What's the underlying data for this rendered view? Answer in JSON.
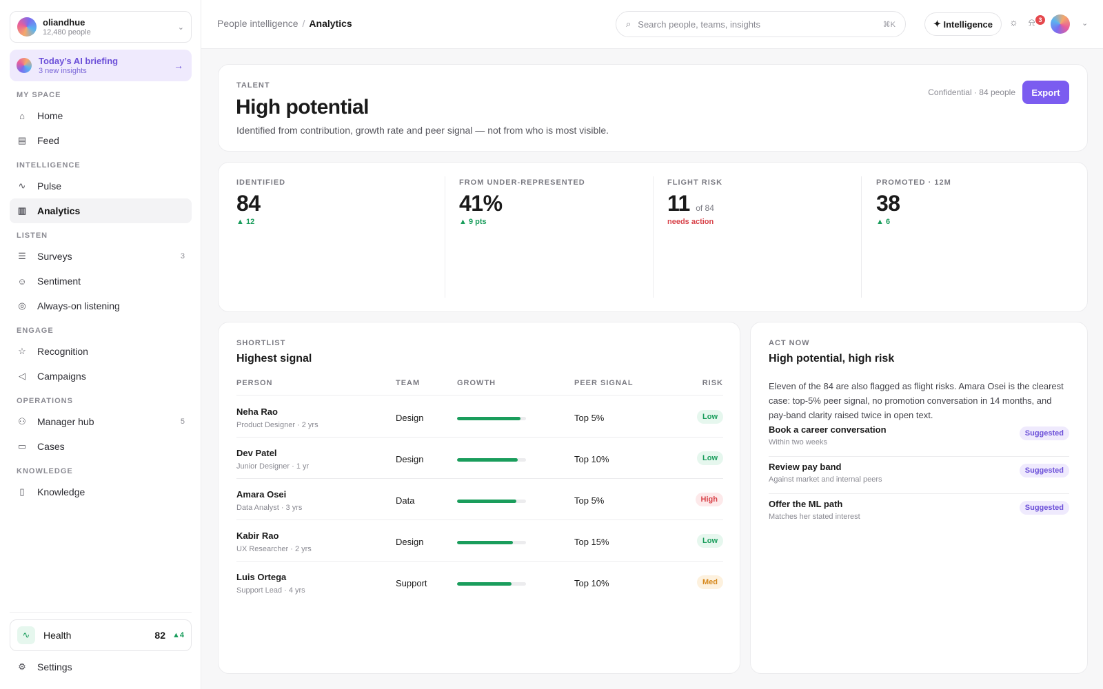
{
  "org": {
    "name": "oliandhue",
    "people": "12,480 people"
  },
  "briefing": {
    "title": "Today’s AI briefing",
    "subtitle": "3 new insights"
  },
  "sidebar": {
    "sections": {
      "my_space": "MY SPACE",
      "intelligence": "INTELLIGENCE",
      "listen": "LISTEN",
      "engage": "ENGAGE",
      "operations": "OPERATIONS",
      "knowledge": "KNOWLEDGE"
    },
    "items": {
      "home": "Home",
      "feed": "Feed",
      "pulse": "Pulse",
      "analytics": "Analytics",
      "surveys": "Surveys",
      "surveys_count": "3",
      "sentiment": "Sentiment",
      "always_on": "Always-on listening",
      "recognition": "Recognition",
      "campaigns": "Campaigns",
      "manager_hub": "Manager hub",
      "manager_hub_count": "5",
      "cases": "Cases",
      "knowledge": "Knowledge"
    },
    "active": "analytics",
    "health": {
      "label": "Health",
      "value": "82",
      "delta": "4"
    },
    "settings": "Settings"
  },
  "header": {
    "breadcrumb": {
      "parent": "People intelligence",
      "current": "Analytics"
    },
    "search": {
      "placeholder": "Search people, teams, insights",
      "shortcut": "⌘K"
    },
    "intelligence_button": "Intelligence",
    "notifications_count": "3"
  },
  "hero": {
    "eyebrow": "TALENT",
    "title": "High potential",
    "description": "Identified from contribution, growth rate and peer signal — not from who is most visible.",
    "confidential": "Confidential · 84 people",
    "export": "Export"
  },
  "stats": [
    {
      "label": "IDENTIFIED",
      "value": "84",
      "suffix": "",
      "delta": "12",
      "direction": "up"
    },
    {
      "label": "FROM UNDER-REPRESENTED",
      "value": "41%",
      "suffix": "",
      "delta": "9 pts",
      "direction": "up"
    },
    {
      "label": "FLIGHT RISK",
      "value": "11",
      "suffix": "of 84",
      "delta": "needs action",
      "direction": "warn"
    },
    {
      "label": "PROMOTED · 12M",
      "value": "38",
      "suffix": "",
      "delta": "6",
      "direction": "up"
    }
  ],
  "shortlist": {
    "eyebrow": "SHORTLIST",
    "title": "Highest signal",
    "columns": {
      "person": "PERSON",
      "team": "TEAM",
      "growth": "GROWTH",
      "peer": "PEER SIGNAL",
      "risk": "RISK"
    },
    "rows": [
      {
        "name": "Neha Rao",
        "meta": "Product Designer · 2 yrs",
        "team": "Design",
        "growth": 0.92,
        "peer": "Top 5%",
        "risk": "Low",
        "risk_level": "low"
      },
      {
        "name": "Dev Patel",
        "meta": "Junior Designer · 1 yr",
        "team": "Design",
        "growth": 0.88,
        "peer": "Top 10%",
        "risk": "Low",
        "risk_level": "low"
      },
      {
        "name": "Amara Osei",
        "meta": "Data Analyst · 3 yrs",
        "team": "Data",
        "growth": 0.86,
        "peer": "Top 5%",
        "risk": "High",
        "risk_level": "high"
      },
      {
        "name": "Kabir Rao",
        "meta": "UX Researcher · 2 yrs",
        "team": "Design",
        "growth": 0.81,
        "peer": "Top 15%",
        "risk": "Low",
        "risk_level": "low"
      },
      {
        "name": "Luis Ortega",
        "meta": "Support Lead · 4 yrs",
        "team": "Support",
        "growth": 0.79,
        "peer": "Top 10%",
        "risk": "Med",
        "risk_level": "med"
      }
    ]
  },
  "act_now": {
    "eyebrow": "ACT NOW",
    "title": "High potential, high risk",
    "body": "Eleven of the 84 are also flagged as flight risks. Amara Osei is the clearest case: top-5% peer signal, no promotion conversation in 14 months, and pay-band clarity raised twice in open text.",
    "actions": [
      {
        "title": "Book a career conversation",
        "subtitle": "Within two weeks",
        "tag": "Suggested"
      },
      {
        "title": "Review pay band",
        "subtitle": "Against market and internal peers",
        "tag": "Suggested"
      },
      {
        "title": "Offer the ML path",
        "subtitle": "Matches her stated interest",
        "tag": "Suggested"
      }
    ]
  },
  "colors": {
    "accent": "#7b5cf0",
    "positive": "#1a9d5c",
    "negative": "#d8434a",
    "warning": "#d6891f"
  }
}
